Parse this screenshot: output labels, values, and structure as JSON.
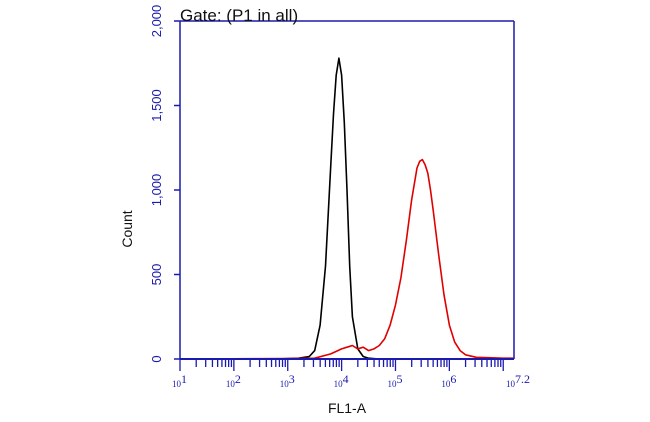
{
  "chart_data": {
    "type": "line",
    "title": "Gate: (P1 in all)",
    "xlabel": "FL1-A",
    "ylabel": "Count",
    "x_scale": "log",
    "xlim": [
      1,
      7.2
    ],
    "ylim": [
      0,
      2000
    ],
    "y_ticks": [
      0,
      500,
      1000,
      1500,
      2000
    ],
    "y_tick_labels": [
      "0",
      "500",
      "1,000",
      "1,500",
      "2,000"
    ],
    "x_ticks": [
      1,
      2,
      3,
      4,
      5,
      6,
      7.2
    ],
    "x_tick_labels": [
      {
        "base": "10",
        "exp": "1"
      },
      {
        "base": "10",
        "exp": "2"
      },
      {
        "base": "10",
        "exp": "3"
      },
      {
        "base": "10",
        "exp": "4"
      },
      {
        "base": "10",
        "exp": "5"
      },
      {
        "base": "10",
        "exp": "6"
      },
      {
        "base": "10",
        "exp": "7.2"
      }
    ],
    "series": [
      {
        "color": "#000000",
        "x": [
          1.0,
          2.8,
          3.2,
          3.4,
          3.5,
          3.6,
          3.7,
          3.8,
          3.85,
          3.9,
          3.95,
          4.0,
          4.05,
          4.1,
          4.15,
          4.2,
          4.3,
          4.4,
          4.5,
          4.7,
          5.0
        ],
        "y": [
          0,
          0,
          5,
          15,
          50,
          200,
          550,
          1150,
          1450,
          1680,
          1780,
          1680,
          1400,
          1000,
          550,
          250,
          60,
          15,
          5,
          0,
          0
        ]
      },
      {
        "color": "#e00000",
        "x": [
          1.0,
          2.5,
          3.0,
          3.5,
          3.8,
          4.0,
          4.1,
          4.2,
          4.3,
          4.4,
          4.5,
          4.6,
          4.7,
          4.8,
          4.9,
          5.0,
          5.1,
          5.2,
          5.3,
          5.4,
          5.45,
          5.5,
          5.55,
          5.6,
          5.65,
          5.7,
          5.8,
          5.9,
          6.0,
          6.1,
          6.2,
          6.3,
          6.5,
          7.0,
          7.2
        ],
        "y": [
          0,
          2,
          3,
          5,
          30,
          60,
          70,
          80,
          60,
          70,
          50,
          60,
          80,
          120,
          200,
          320,
          480,
          700,
          940,
          1130,
          1170,
          1180,
          1150,
          1100,
          1000,
          880,
          620,
          380,
          200,
          100,
          50,
          25,
          10,
          5,
          5
        ]
      }
    ],
    "grid": false,
    "legend": "none"
  }
}
